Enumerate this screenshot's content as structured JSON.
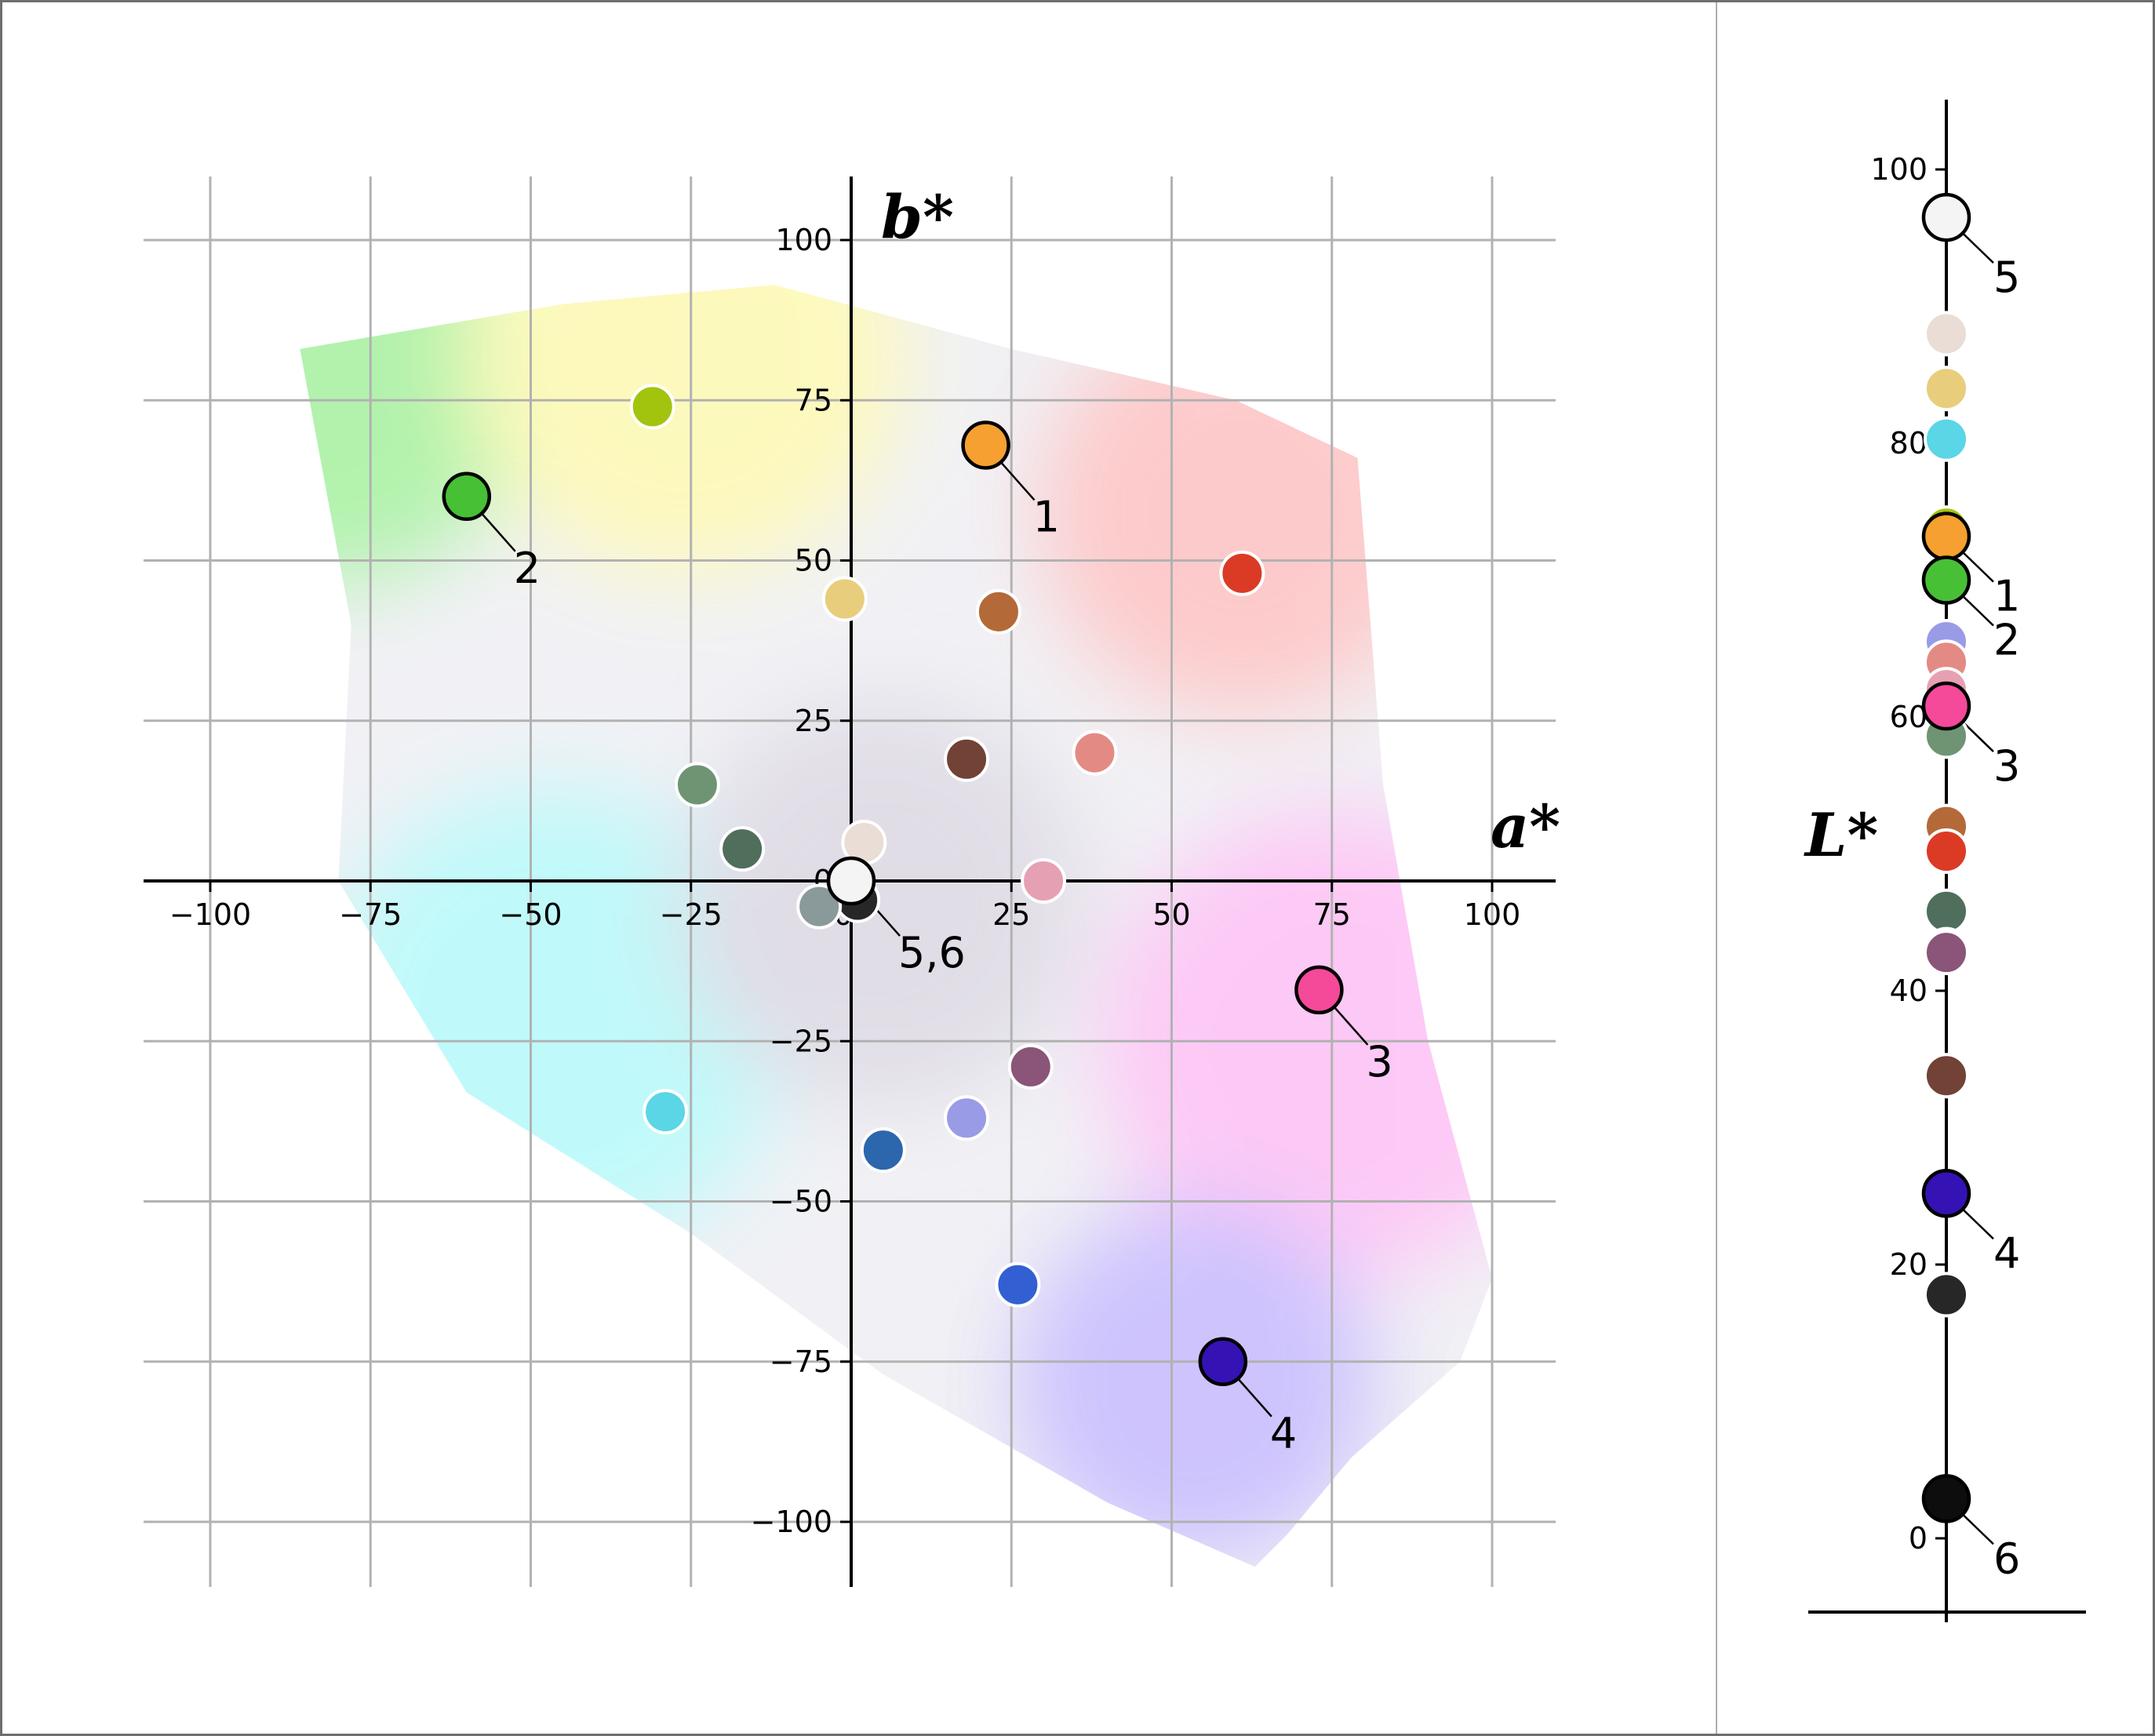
{
  "chart_data": [
    {
      "type": "scatter",
      "name_panel": "ab",
      "xlabel": "a*",
      "ylabel": "b*",
      "xlim": [
        -110,
        110
      ],
      "ylim": [
        -110,
        110
      ],
      "xticks": [
        "−100",
        "−75",
        "−50",
        "−25",
        "0",
        "25",
        "50",
        "75",
        "100"
      ],
      "yticks": [
        "−100",
        "−75",
        "−50",
        "−25",
        "0",
        "25",
        "50",
        "75",
        "100"
      ],
      "xtick_values": [
        -100,
        -75,
        -50,
        -25,
        0,
        25,
        50,
        75,
        100
      ],
      "ytick_values": [
        -100,
        -75,
        -50,
        -25,
        0,
        25,
        50,
        75,
        100
      ],
      "grid": true,
      "points": [
        {
          "a": -31,
          "b": 74,
          "color": "#a3c40f"
        },
        {
          "a": 21,
          "b": 68,
          "color": "#f5a030",
          "label": "1",
          "highlight": true
        },
        {
          "a": -60,
          "b": 60,
          "color": "#47c035",
          "label": "2",
          "highlight": true
        },
        {
          "a": -1,
          "b": 44,
          "color": "#e8cd7c"
        },
        {
          "a": 23,
          "b": 42,
          "color": "#b46a38"
        },
        {
          "a": 61,
          "b": 48,
          "color": "#db3b25"
        },
        {
          "a": 18,
          "b": 19,
          "color": "#714235"
        },
        {
          "a": 38,
          "b": 20,
          "color": "#e48a85"
        },
        {
          "a": -24,
          "b": 15,
          "color": "#6f9473"
        },
        {
          "a": -17,
          "b": 5,
          "color": "#4f6e5c"
        },
        {
          "a": 2,
          "b": 6,
          "color": "#e9ddd6"
        },
        {
          "a": 30,
          "b": 0,
          "color": "#e6a0b4"
        },
        {
          "a": 1,
          "b": -3,
          "color": "#272727"
        },
        {
          "a": -5,
          "b": -4,
          "color": "#8a9999"
        },
        {
          "a": 0,
          "b": 0,
          "color": "#f4f4f4",
          "label": "5,6",
          "highlight": true
        },
        {
          "a": 73,
          "b": -17,
          "color": "#f5499a",
          "label": "3",
          "highlight": true
        },
        {
          "a": 28,
          "b": -29,
          "color": "#8b5479"
        },
        {
          "a": -29,
          "b": -36,
          "color": "#5bd6e6"
        },
        {
          "a": 18,
          "b": -37,
          "color": "#9a9be6"
        },
        {
          "a": 5,
          "b": -42,
          "color": "#2c66ad"
        },
        {
          "a": 26,
          "b": -63,
          "color": "#3260d3"
        },
        {
          "a": 58,
          "b": -75,
          "color": "#3512b4",
          "label": "4",
          "highlight": true
        }
      ]
    },
    {
      "type": "scatter",
      "name_panel": "L",
      "ylabel": "L*",
      "ylim": [
        -10,
        105
      ],
      "yticks": [
        "0",
        "20",
        "40",
        "60",
        "80",
        "100"
      ],
      "ytick_values": [
        0,
        20,
        40,
        60,
        80,
        100
      ],
      "points": [
        {
          "L": 96.5,
          "color": "#f4f4f4",
          "label": "5",
          "highlight": true
        },
        {
          "L": 88,
          "color": "#e9ddd6"
        },
        {
          "L": 84,
          "color": "#e8cd7c"
        },
        {
          "L": 80.3,
          "color": "#5bd6e6"
        },
        {
          "L": 73.8,
          "color": "#a3c40f"
        },
        {
          "L": 73.2,
          "color": "#f5a030",
          "label": "1",
          "highlight": true
        },
        {
          "L": 70,
          "color": "#47c035",
          "label": "2",
          "highlight": true
        },
        {
          "L": 65.5,
          "color": "#9a9be6"
        },
        {
          "L": 64,
          "color": "#e48a85"
        },
        {
          "L": 62,
          "color": "#e6a0b4"
        },
        {
          "L": 58.6,
          "color": "#6f9473"
        },
        {
          "L": 60.8,
          "color": "#f5499a",
          "label": "3",
          "highlight": true
        },
        {
          "L": 52,
          "color": "#b46a38"
        },
        {
          "L": 50.2,
          "color": "#db3b25"
        },
        {
          "L": 45.8,
          "color": "#4f6e5c"
        },
        {
          "L": 43,
          "color": "#8a9999"
        },
        {
          "L": 42.8,
          "color": "#8b5479"
        },
        {
          "L": 33.8,
          "color": "#714235"
        },
        {
          "L": 25.2,
          "color": "#3512b4",
          "label": "4",
          "highlight": true
        },
        {
          "L": 17.8,
          "color": "#272727"
        },
        {
          "L": 2.9,
          "color": "#0d0d0d",
          "label": "6",
          "highlight": true
        }
      ]
    }
  ]
}
